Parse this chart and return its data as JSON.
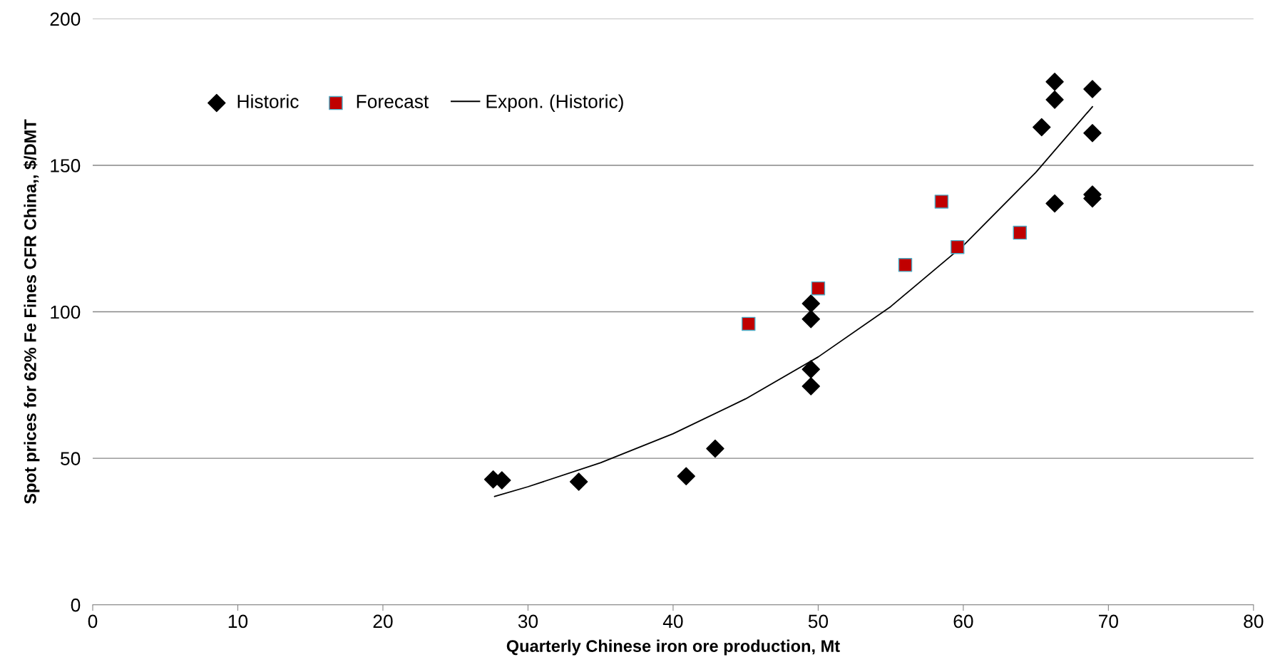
{
  "chart_data": {
    "type": "scatter",
    "xlabel": "Quarterly Chinese iron ore production, Mt",
    "ylabel": "Spot prices for 62% Fe Fines CFR China,, $/DMT",
    "xlim": [
      0,
      80
    ],
    "xticks": [
      0,
      10,
      20,
      30,
      40,
      50,
      60,
      70,
      80
    ],
    "ylim": [
      0,
      200
    ],
    "yticks": [
      0,
      50,
      100,
      150,
      200
    ],
    "grid": "y",
    "legend": "top left",
    "series": [
      {
        "name": "Historic",
        "marker": "diamond",
        "color": "#000000",
        "x": [
          27.6,
          28.2,
          33.5,
          40.9,
          42.9,
          49.5,
          49.5,
          49.5,
          49.5,
          65.4,
          66.3,
          66.3,
          66.3,
          68.9,
          68.9,
          68.9,
          68.9
        ],
        "values": [
          42.8,
          42.5,
          42.0,
          43.9,
          53.3,
          102.8,
          97.5,
          80.4,
          74.6,
          163,
          178.5,
          172.4,
          137,
          176,
          161,
          140,
          138.7
        ]
      },
      {
        "name": "Forecast",
        "marker": "square",
        "color": "#c00000",
        "x": [
          45.2,
          50.0,
          56.0,
          58.5,
          59.6,
          63.9
        ],
        "values": [
          95.9,
          108,
          116,
          137.6,
          122.1,
          127
        ]
      },
      {
        "name": "Expon. (Historic)",
        "type": "line",
        "marker": "none",
        "line_style": "solid",
        "color": "#000000",
        "x": [
          27.7,
          30,
          35,
          40,
          45,
          50,
          55,
          60,
          65,
          68.9
        ],
        "values": [
          37.0,
          40.3,
          48.5,
          58.4,
          70.3,
          84.6,
          101.8,
          122.6,
          147.6,
          170
        ]
      }
    ]
  }
}
